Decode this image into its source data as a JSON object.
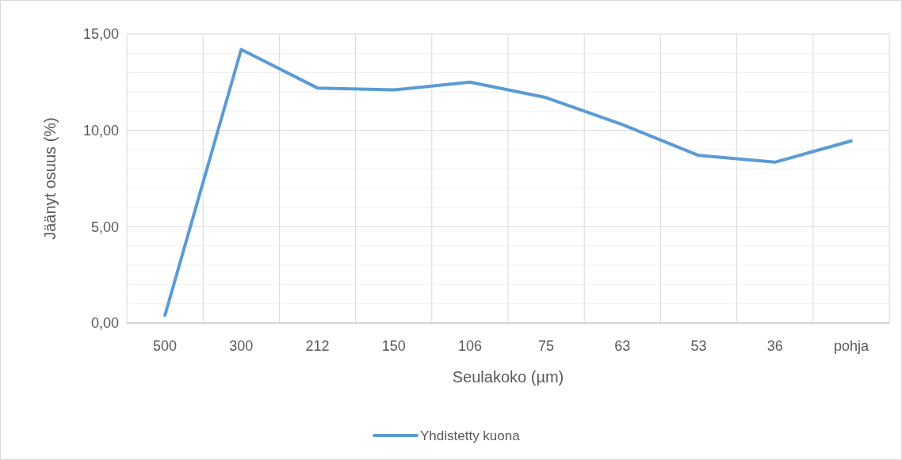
{
  "chart_data": {
    "type": "line",
    "xlabel": "Seulakoko (µm)",
    "ylabel": "Jäänyt osuus (%)",
    "categories": [
      "500",
      "300",
      "212",
      "150",
      "106",
      "75",
      "63",
      "53",
      "36",
      "pohja"
    ],
    "series": [
      {
        "name": "Yhdistetty kuona",
        "color": "#5b9bd5",
        "values": [
          0.4,
          14.2,
          12.2,
          12.1,
          12.5,
          11.7,
          10.3,
          8.7,
          8.35,
          9.45
        ]
      }
    ],
    "ylim": [
      0,
      15
    ],
    "yticks": [
      {
        "value": 0,
        "label": "0,00"
      },
      {
        "value": 1,
        "label": null
      },
      {
        "value": 2,
        "label": null
      },
      {
        "value": 3,
        "label": null
      },
      {
        "value": 4,
        "label": null
      },
      {
        "value": 5,
        "label": "5,00"
      },
      {
        "value": 6,
        "label": null
      },
      {
        "value": 7,
        "label": null
      },
      {
        "value": 8,
        "label": null
      },
      {
        "value": 9,
        "label": null
      },
      {
        "value": 10,
        "label": "10,00"
      },
      {
        "value": 11,
        "label": null
      },
      {
        "value": 12,
        "label": null
      },
      {
        "value": 13,
        "label": null
      },
      {
        "value": 14,
        "label": null
      },
      {
        "value": 15,
        "label": "15,00"
      }
    ],
    "grid": true,
    "legend": "bottom",
    "marker": "none",
    "line_style": "solid"
  }
}
